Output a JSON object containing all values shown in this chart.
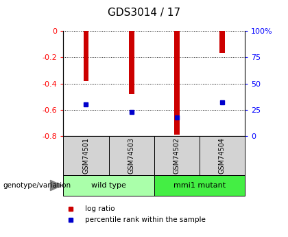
{
  "title": "GDS3014 / 17",
  "samples": [
    "GSM74501",
    "GSM74503",
    "GSM74502",
    "GSM74504"
  ],
  "log_ratios": [
    -0.38,
    -0.48,
    -0.79,
    -0.17
  ],
  "percentile_ranks": [
    30,
    23,
    18,
    32
  ],
  "groups": [
    {
      "label": "wild type",
      "samples": [
        0,
        1
      ],
      "color": "#aaffaa"
    },
    {
      "label": "mmi1 mutant",
      "samples": [
        2,
        3
      ],
      "color": "#44ee44"
    }
  ],
  "ylim_left": [
    -0.8,
    0.0
  ],
  "ylim_right": [
    0,
    100
  ],
  "left_ticks": [
    0,
    -0.2,
    -0.4,
    -0.6,
    -0.8
  ],
  "right_ticks": [
    0,
    25,
    50,
    75,
    100
  ],
  "right_tick_labels": [
    "0",
    "25",
    "50",
    "75",
    "100%"
  ],
  "bar_color": "#cc0000",
  "dot_color": "#0000cc",
  "legend_log_ratio": "log ratio",
  "legend_percentile": "percentile rank within the sample",
  "genotype_label": "genotype/variation"
}
